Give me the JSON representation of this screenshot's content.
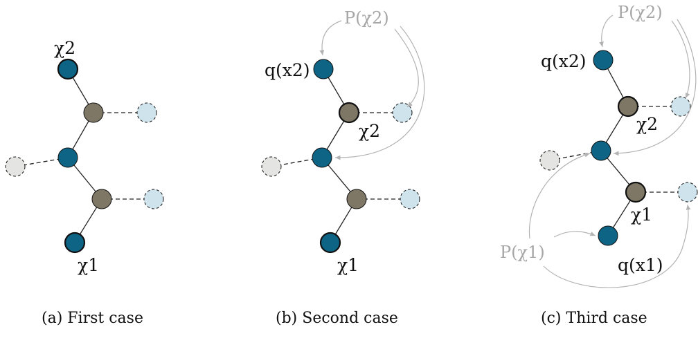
{
  "colors": {
    "blue_node": "#0d6485",
    "gray_node": "#7f7766",
    "light_blue_node": "#cfe3ec",
    "light_gray_node": "#e4e4e2",
    "edge": "#222222",
    "arrow": "#b3b3b3"
  },
  "panels": [
    {
      "caption": "(a) First case",
      "labels": {
        "chi2": "χ2",
        "chi1": "χ1"
      }
    },
    {
      "caption": "(b) Second case",
      "labels": {
        "q2": "q(x2)",
        "chi2": "χ2",
        "chi1": "χ1",
        "p2": "P(χ2)"
      }
    },
    {
      "caption": "(c) Third case",
      "labels": {
        "q2": "q(x2)",
        "chi2": "χ2",
        "chi1": "χ1",
        "q1": "q(x1)",
        "p2": "P(χ2)",
        "p1": "P(χ1)"
      }
    }
  ]
}
